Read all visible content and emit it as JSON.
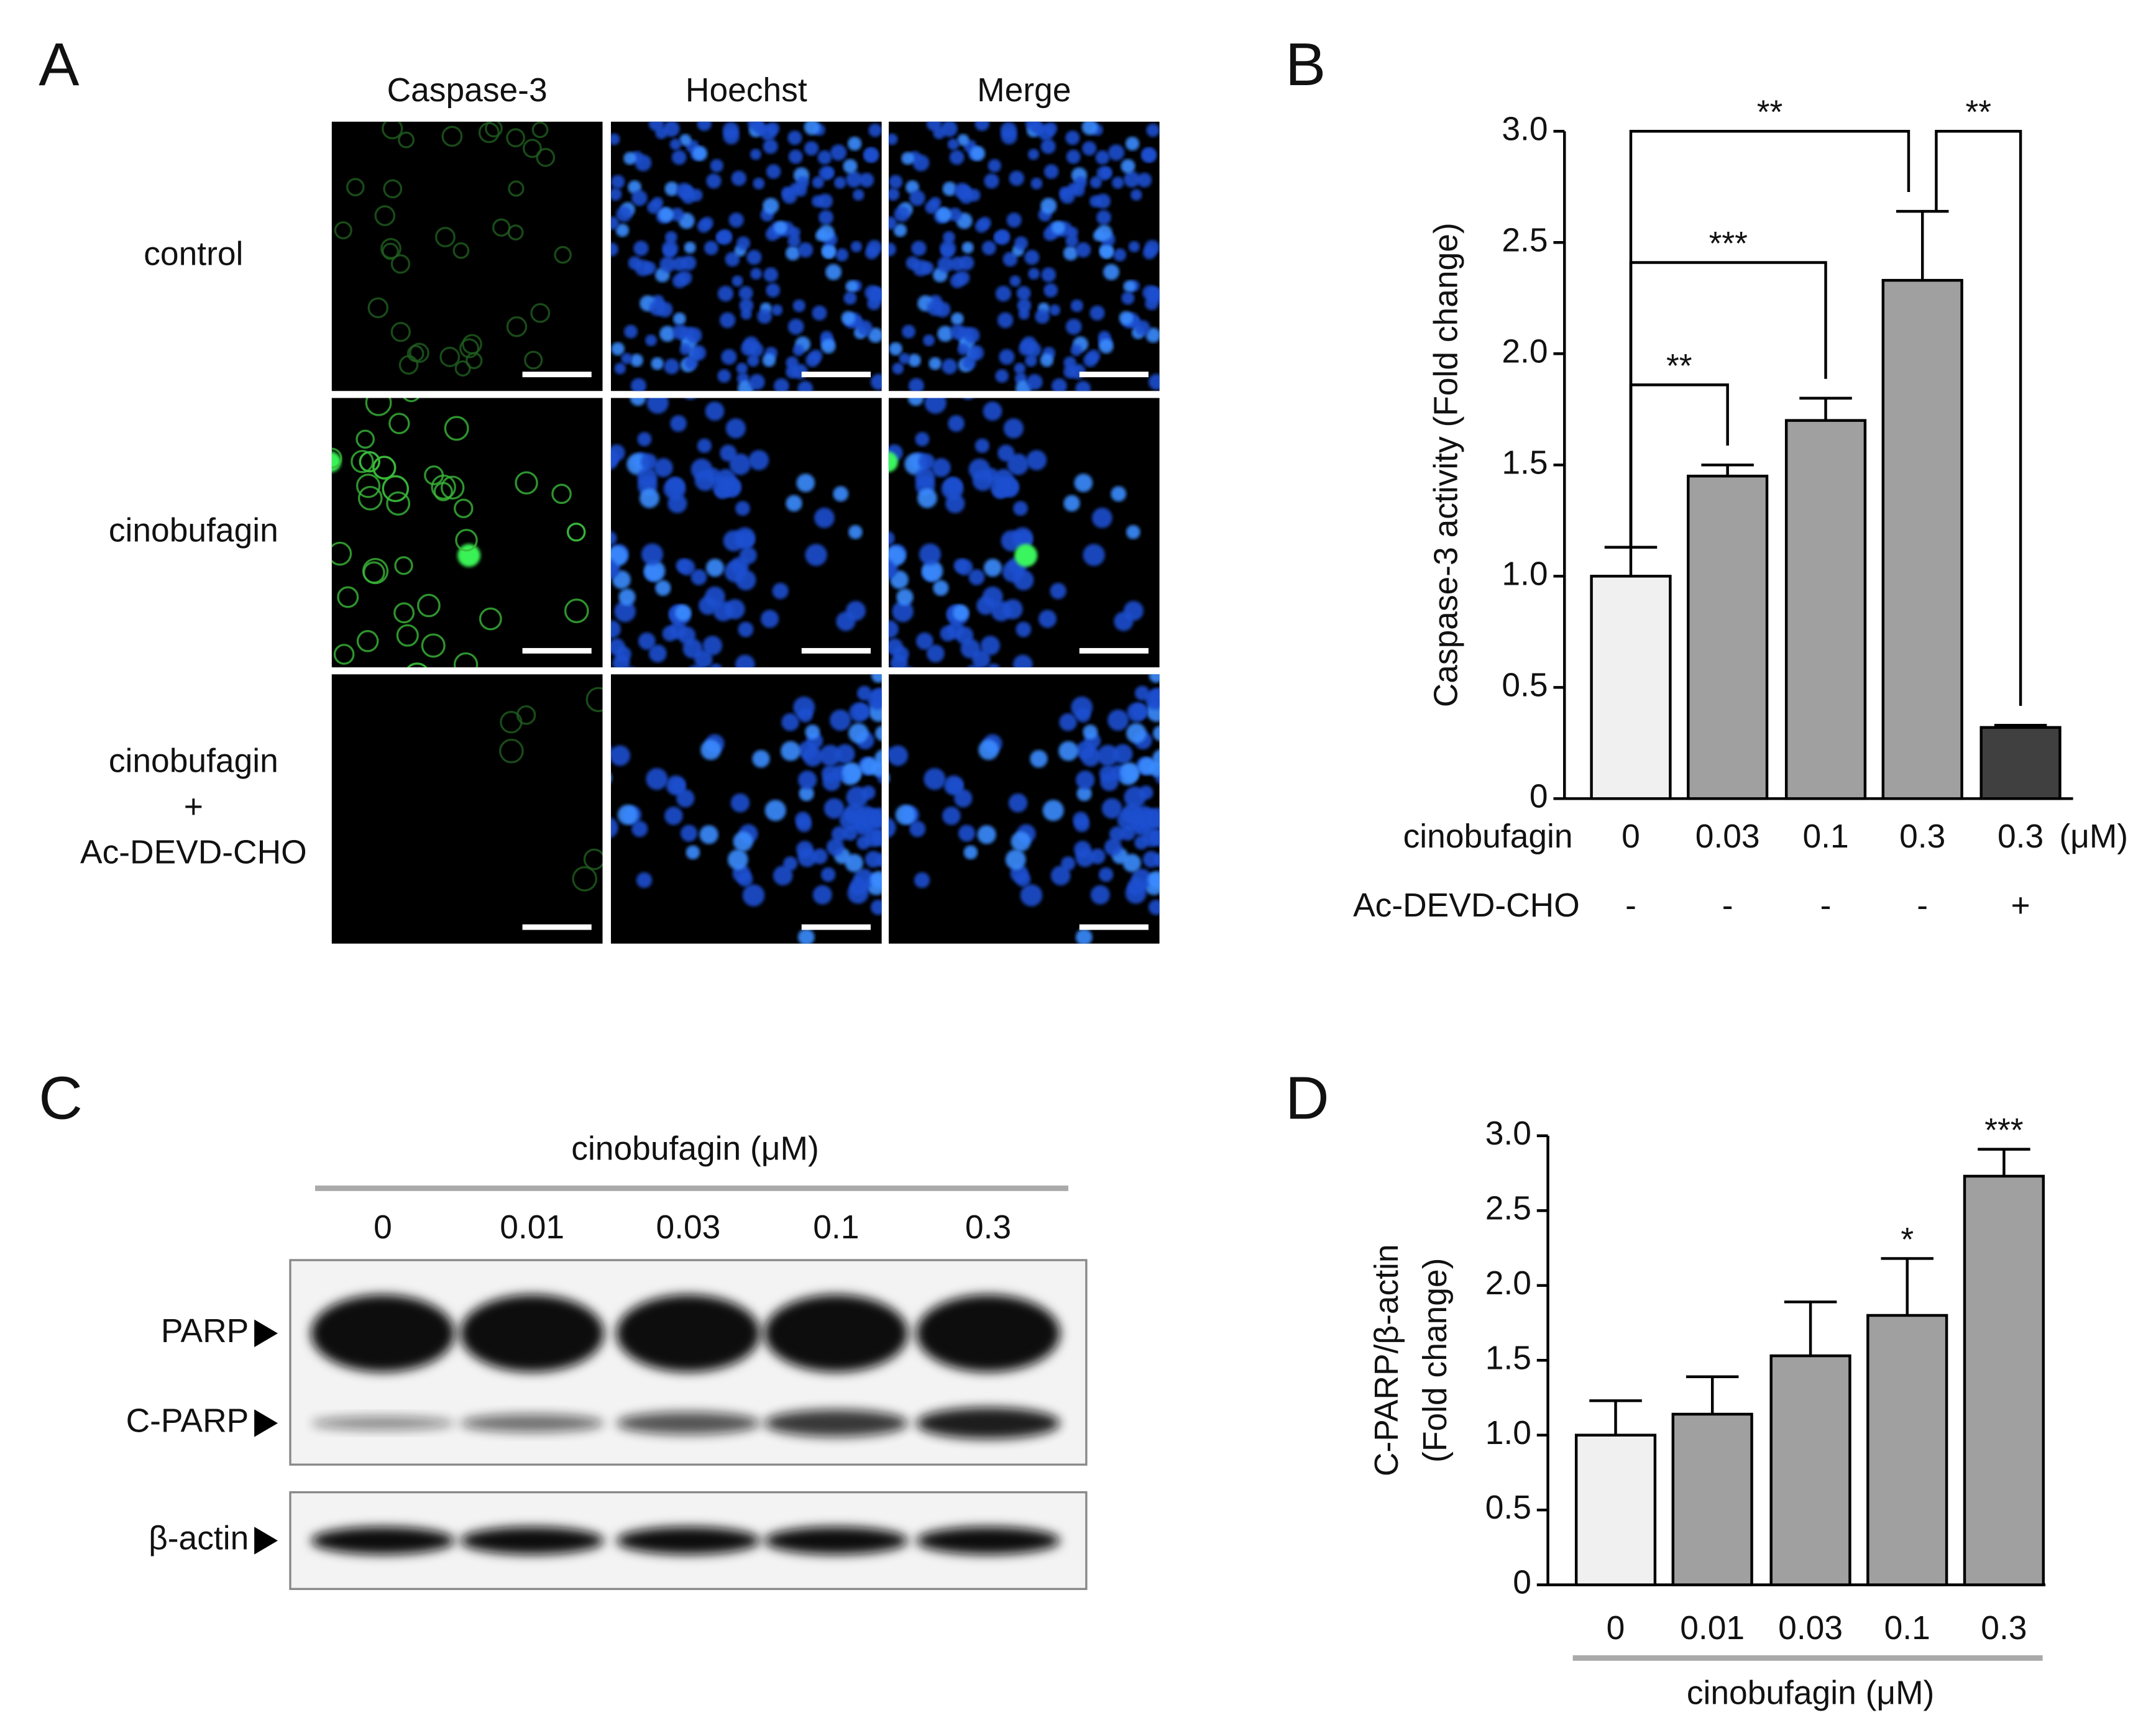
{
  "panel_a": {
    "label": "A",
    "columns": [
      "Caspase-3",
      "Hoechst",
      "Merge"
    ],
    "rows": [
      [
        "control"
      ],
      [
        "cinobufagin"
      ],
      [
        "cinobufagin",
        "+",
        "Ac-DEVD-CHO"
      ]
    ]
  },
  "panel_c": {
    "label": "C",
    "title": "cinobufagin (μM)",
    "lanes": [
      "0",
      "0.01",
      "0.03",
      "0.1",
      "0.3"
    ],
    "bands": [
      "PARP",
      "C-PARP",
      "β-actin"
    ]
  },
  "chart_data": [
    {
      "type": "bar",
      "panel": "B",
      "ylabel": "Caspase-3 activity (Fold change)",
      "categories": [
        "0",
        "0.03",
        "0.1",
        "0.3",
        "0.3"
      ],
      "category_title": "cinobufagin",
      "category_unit": "(μM)",
      "second_row_title": "Ac-DEVD-CHO",
      "second_row": [
        "-",
        "-",
        "-",
        "-",
        "+"
      ],
      "values": [
        1.0,
        1.45,
        1.7,
        2.33,
        0.32
      ],
      "errors": [
        0.13,
        0.05,
        0.1,
        0.31,
        0.01
      ],
      "colors": [
        "#f0f0f0",
        "#a0a0a0",
        "#a0a0a0",
        "#a0a0a0",
        "#404040"
      ],
      "ylim": [
        0,
        3
      ],
      "yticks": [
        0,
        0.5,
        {
          "value": 1,
          "label": "1.0"
        },
        1.5,
        {
          "value": 2,
          "label": "2.0"
        },
        2.5,
        {
          "value": 3,
          "label": "3.0"
        }
      ],
      "significance": [
        {
          "from": 0,
          "to": 1,
          "y": 1.86,
          "label": "**"
        },
        {
          "from": 0,
          "to": 2,
          "y": 2.41,
          "label": "***"
        },
        {
          "from": 0,
          "to": 3,
          "y": 3.0,
          "label": "**"
        },
        {
          "from": 3,
          "to": 4,
          "y": 3.0,
          "label": "**"
        }
      ]
    },
    {
      "type": "bar",
      "panel": "D",
      "ylabel": [
        "C-PARP/β-actin",
        "(Fold change)"
      ],
      "categories": [
        "0",
        "0.01",
        "0.03",
        "0.1",
        "0.3"
      ],
      "xlabel": "cinobufagin (μM)",
      "values": [
        1.0,
        1.14,
        1.53,
        1.8,
        2.73
      ],
      "errors": [
        0.23,
        0.25,
        0.36,
        0.38,
        0.18
      ],
      "colors": [
        "#f0f0f0",
        "#a0a0a0",
        "#a0a0a0",
        "#a0a0a0",
        "#a0a0a0"
      ],
      "ylim": [
        0,
        3
      ],
      "yticks": [
        0,
        0.5,
        {
          "value": 1,
          "label": "1.0"
        },
        1.5,
        {
          "value": 2,
          "label": "2.0"
        },
        2.5,
        {
          "value": 3,
          "label": "3.0"
        }
      ],
      "stars": [
        null,
        null,
        null,
        "*",
        "***"
      ]
    }
  ]
}
